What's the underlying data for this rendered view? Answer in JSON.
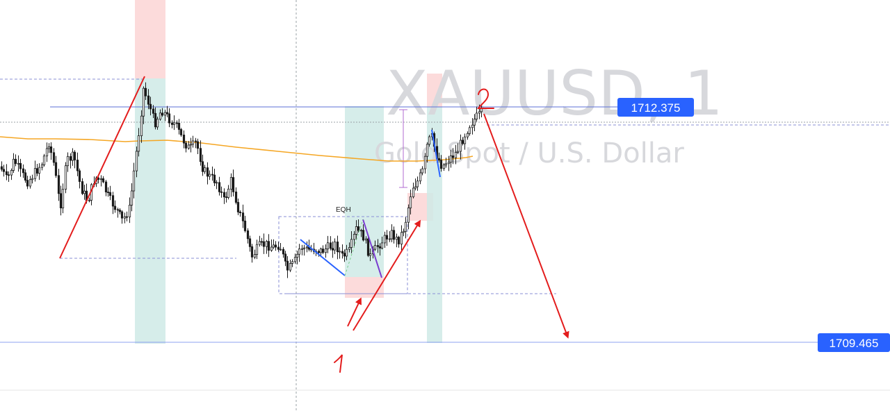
{
  "chart_data": {
    "type": "candlestick",
    "symbol_watermark": "XAUUSD, 1",
    "description_watermark": "Gold Spot / U.S. Dollar",
    "price_labels": [
      {
        "value": "1712.375",
        "color": "#2962ff"
      },
      {
        "value": "1709.465",
        "color": "#2962ff"
      }
    ],
    "annotations": {
      "eqh_label": "EQH",
      "handwritten_1": "1",
      "handwritten_2": "2"
    },
    "colors": {
      "candle": "#1a1a1a",
      "moving_average": "#f5a623",
      "arrow": "#e31c1c",
      "blue_line": "#2962ff",
      "green_zone": "#cfeae6",
      "red_zone": "#fbd5d5"
    }
  }
}
